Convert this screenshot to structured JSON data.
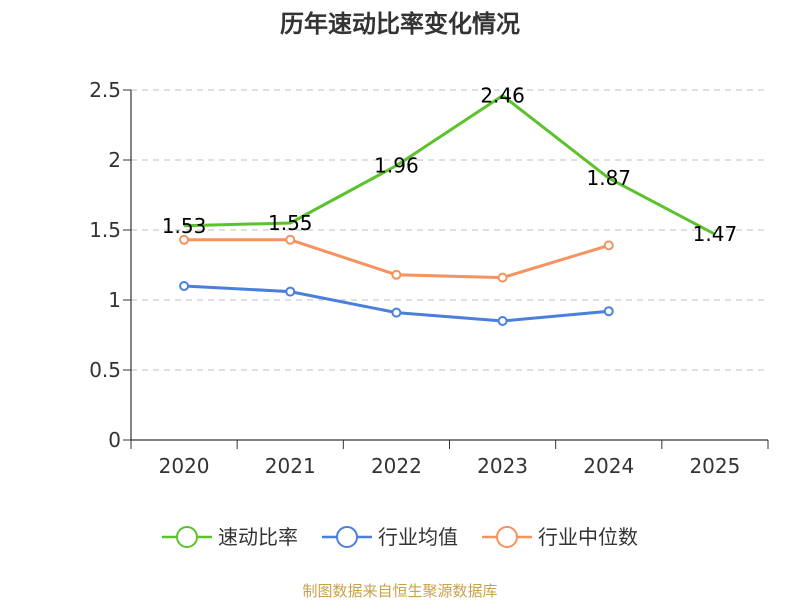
{
  "chart_data": {
    "type": "line",
    "title": "历年速动比率变化情况",
    "categories": [
      "2020",
      "2021",
      "2022",
      "2023",
      "2024",
      "2025"
    ],
    "ylim": [
      0,
      2.5
    ],
    "yticks": [
      "0",
      "0.5",
      "1",
      "1.5",
      "2",
      "2.5"
    ],
    "grid": true,
    "legend_position": "bottom",
    "series": [
      {
        "name": "速动比率",
        "color": "#5cc22c",
        "values": [
          1.53,
          1.55,
          1.96,
          2.46,
          1.87,
          1.47
        ],
        "labels": [
          "1.53",
          "1.55",
          "1.96",
          "2.46",
          "1.87",
          "1.47"
        ],
        "show_markers": false,
        "show_labels": true
      },
      {
        "name": "行业均值",
        "color": "#4a7fdc",
        "values": [
          1.1,
          1.06,
          0.91,
          0.85,
          0.92,
          null
        ],
        "show_markers": true,
        "show_labels": false
      },
      {
        "name": "行业中位数",
        "color": "#f5925e",
        "values": [
          1.43,
          1.43,
          1.18,
          1.16,
          1.39,
          null
        ],
        "show_markers": true,
        "show_labels": false
      }
    ]
  },
  "source": {
    "text": "制图数据来自恒生聚源数据库",
    "color": "#c8a24a"
  }
}
